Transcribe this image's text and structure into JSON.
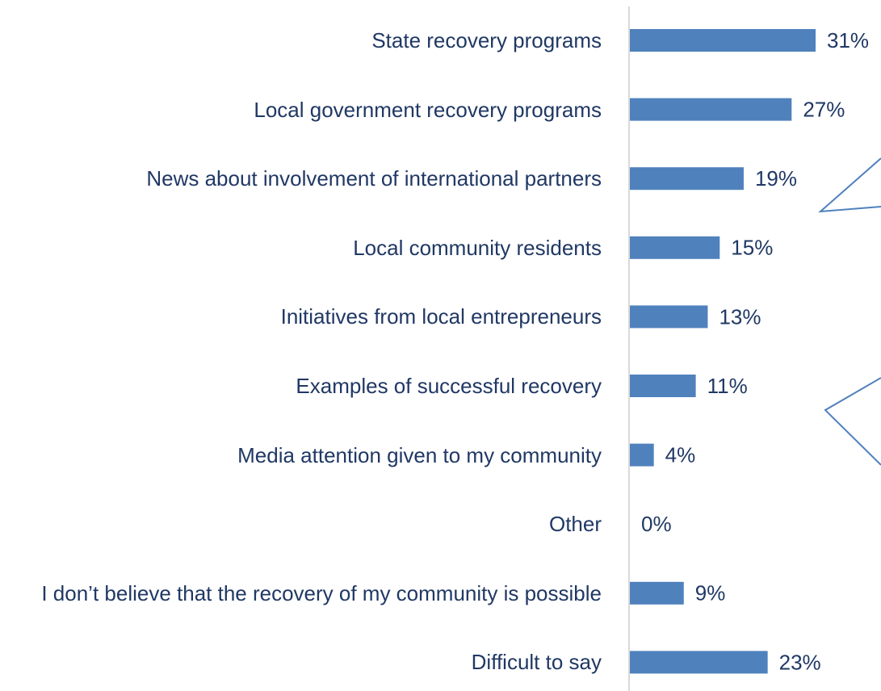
{
  "chart_data": {
    "type": "bar",
    "orientation": "horizontal",
    "categories": [
      "State recovery programs",
      "Local government recovery programs",
      "News about involvement of international partners",
      "Local community residents",
      "Initiatives from local entrepreneurs",
      "Examples of successful recovery",
      "Media attention given to my community",
      "Other",
      "I don’t believe that the recovery of my community is possible",
      "Difficult to say"
    ],
    "values": [
      31,
      27,
      19,
      15,
      13,
      11,
      4,
      0,
      9,
      23
    ],
    "value_labels": [
      "31%",
      "27%",
      "19%",
      "15%",
      "13%",
      "11%",
      "4%",
      "0%",
      "9%",
      "23%"
    ],
    "color": "#4f81bd"
  }
}
